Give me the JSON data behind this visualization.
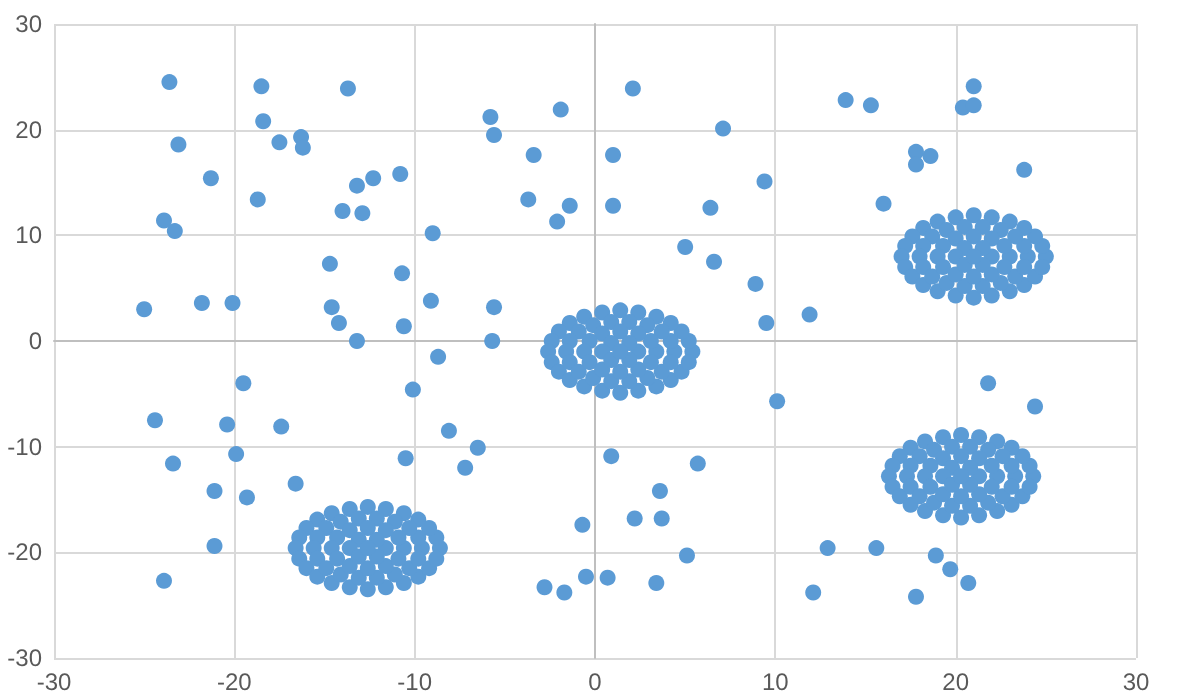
{
  "chart_data": {
    "type": "scatter",
    "marker": "circle",
    "grid": true,
    "xlim": [
      -30,
      30
    ],
    "ylim": [
      -30,
      30
    ],
    "xticks": [
      -30,
      -20,
      -10,
      0,
      10,
      20,
      30
    ],
    "yticks": [
      -30,
      -20,
      -10,
      0,
      10,
      20,
      30
    ],
    "series": [
      {
        "color": "#5b9bd5",
        "x": [
          -23.6,
          -18.5,
          -13.7,
          -18.4,
          -23.1,
          -17.5,
          -16.3,
          -16.2,
          -21.3,
          -18.7,
          -13.2,
          -12.3,
          -10.8,
          -14.0,
          -12.9,
          -23.9,
          -23.3,
          -9.0,
          -14.7,
          -10.7,
          -25.0,
          -21.8,
          -20.1,
          -14.6,
          -14.2,
          -10.6,
          -9.1,
          -5.6,
          -13.2,
          -5.7,
          -5.8,
          -5.6,
          -3.4,
          -3.7,
          -2.1,
          -1.4,
          -1.9,
          2.1,
          1.0,
          1.0,
          7.1,
          9.4,
          6.4,
          5.0,
          6.6,
          8.9,
          9.5,
          11.9,
          13.9,
          15.3,
          20.4,
          21.0,
          21.0,
          17.8,
          17.8,
          18.6,
          23.8,
          16.0,
          -19.5,
          -10.1,
          -8.7,
          -24.4,
          -20.4,
          -17.4,
          -19.9,
          -23.4,
          -8.1,
          -6.5,
          -10.5,
          -7.2,
          -16.6,
          -21.1,
          -19.3,
          -21.1,
          -23.9,
          -0.7,
          -0.5,
          -2.8,
          -1.7,
          10.1,
          21.8,
          24.4,
          0.9,
          5.7,
          3.6,
          2.2,
          3.7,
          5.1,
          0.7,
          3.4,
          12.9,
          15.6,
          18.9,
          19.7,
          20.7,
          12.1,
          17.8
        ],
        "values": [
          24.5,
          24.1,
          23.9,
          20.8,
          18.6,
          18.8,
          19.3,
          18.3,
          15.4,
          13.4,
          14.7,
          15.4,
          15.8,
          12.3,
          12.1,
          11.4,
          10.4,
          10.2,
          7.3,
          6.4,
          3.0,
          3.6,
          3.6,
          3.2,
          1.7,
          1.4,
          3.8,
          3.2,
          0,
          0,
          21.2,
          19.5,
          17.6,
          13.4,
          11.3,
          12.8,
          21.9,
          23.9,
          17.6,
          12.8,
          20.1,
          15.1,
          12.6,
          8.9,
          7.5,
          5.4,
          1.7,
          2.5,
          22.8,
          22.3,
          22.1,
          22.3,
          24.1,
          17.9,
          16.7,
          17.5,
          16.2,
          13.0,
          -4.0,
          -4.6,
          -1.5,
          -7.5,
          -7.9,
          -8.1,
          -10.7,
          -11.6,
          -8.5,
          -10.1,
          -11.1,
          -12.0,
          -13.5,
          -14.2,
          -14.8,
          -19.4,
          -22.7,
          -17.4,
          -22.3,
          -23.3,
          -23.8,
          -5.7,
          -4.0,
          -6.2,
          -10.9,
          -11.6,
          -14.2,
          -16.8,
          -16.8,
          -20.3,
          -22.4,
          -22.9,
          -19.6,
          -19.6,
          -20.3,
          -21.6,
          -22.9,
          -23.8,
          -24.2
        ]
      },
      {
        "color": "#5b9bd5",
        "x": [
          5.4,
          5.2,
          4.8,
          4.2,
          3.4,
          2.4,
          1.4,
          0.4,
          -0.6,
          -1.4,
          -2.0,
          -2.4,
          -2.6,
          -2.4,
          -2.0,
          -1.4,
          -0.6,
          0.4,
          1.4,
          2.4,
          3.4,
          4.2,
          4.8,
          5.2,
          4.4,
          4.2,
          3.7,
          2.9,
          1.9,
          0.9,
          -0.1,
          -0.9,
          -1.4,
          -1.6,
          -1.4,
          -0.9,
          -0.1,
          0.9,
          1.9,
          2.9,
          3.7,
          4.2,
          3.4,
          3.1,
          2.4,
          1.4,
          0.4,
          -0.3,
          -0.6,
          -0.3,
          0.4,
          1.4,
          2.4,
          3.1,
          2.4,
          1.9,
          0.9,
          0.4,
          0.9,
          1.9,
          1.4
        ],
        "values": [
          -1.0,
          0,
          0.9,
          1.7,
          2.3,
          2.7,
          2.9,
          2.7,
          2.3,
          1.7,
          0.9,
          0,
          -1.0,
          -2.0,
          -2.9,
          -3.7,
          -4.3,
          -4.7,
          -4.9,
          -4.7,
          -4.3,
          -3.7,
          -2.9,
          -2.0,
          -1.0,
          0,
          0.9,
          1.5,
          1.8,
          1.8,
          1.5,
          0.9,
          0,
          -1.0,
          -2.0,
          -2.9,
          -3.5,
          -3.8,
          -3.8,
          -3.5,
          -2.9,
          -2.0,
          -1.0,
          0,
          0.7,
          0.9,
          0.7,
          0,
          -1.0,
          -2.0,
          -2.7,
          -2.9,
          -2.7,
          -2.0,
          -1.0,
          -0.2,
          -0.2,
          -1.0,
          -1.8,
          -1.8,
          -1.0
        ]
      },
      {
        "color": "#5b9bd5",
        "x": [
          25.0,
          24.8,
          24.4,
          23.8,
          23.0,
          22.0,
          21.0,
          20.0,
          19.0,
          18.2,
          17.6,
          17.2,
          17.0,
          17.2,
          17.6,
          18.2,
          19.0,
          20.0,
          21.0,
          22.0,
          23.0,
          23.8,
          24.4,
          24.8,
          24.0,
          23.8,
          23.3,
          22.5,
          21.5,
          20.5,
          19.5,
          18.7,
          18.2,
          18.0,
          18.2,
          18.7,
          19.5,
          20.5,
          21.5,
          22.5,
          23.3,
          23.8,
          23.0,
          22.7,
          22.0,
          21.0,
          20.0,
          19.3,
          19.0,
          19.3,
          20.0,
          21.0,
          22.0,
          22.7,
          22.0,
          21.5,
          20.5,
          20.0,
          20.5,
          21.5,
          21.0
        ],
        "values": [
          8.0,
          9.0,
          9.9,
          10.7,
          11.3,
          11.7,
          11.9,
          11.7,
          11.3,
          10.7,
          9.9,
          9.0,
          8.0,
          7.0,
          6.1,
          5.3,
          4.7,
          4.3,
          4.1,
          4.3,
          4.7,
          5.3,
          6.1,
          7.0,
          8.0,
          9.0,
          9.9,
          10.5,
          10.8,
          10.8,
          10.5,
          9.9,
          9.0,
          8.0,
          7.0,
          6.1,
          5.5,
          5.2,
          5.2,
          5.5,
          6.1,
          7.0,
          8.0,
          9.0,
          9.7,
          9.9,
          9.7,
          9.0,
          8.0,
          7.0,
          6.3,
          6.1,
          6.3,
          7.0,
          8.0,
          8.8,
          8.8,
          8.0,
          7.2,
          7.2,
          8.0
        ]
      },
      {
        "color": "#5b9bd5",
        "x": [
          24.3,
          24.1,
          23.7,
          23.1,
          22.3,
          21.3,
          20.3,
          19.3,
          18.3,
          17.5,
          16.9,
          16.5,
          16.3,
          16.5,
          16.9,
          17.5,
          18.3,
          19.3,
          20.3,
          21.3,
          22.3,
          23.1,
          23.7,
          24.1,
          23.3,
          23.1,
          22.6,
          21.8,
          20.8,
          19.8,
          18.8,
          18.0,
          17.5,
          17.3,
          17.5,
          18.0,
          18.8,
          19.8,
          20.8,
          21.8,
          22.6,
          23.1,
          22.3,
          22.0,
          21.3,
          20.3,
          19.3,
          18.6,
          18.3,
          18.6,
          19.3,
          20.3,
          21.3,
          22.0,
          21.3,
          20.8,
          19.8,
          19.3,
          19.8,
          20.8,
          20.3
        ],
        "values": [
          -12.8,
          -11.8,
          -10.9,
          -10.1,
          -9.5,
          -9.1,
          -8.9,
          -9.1,
          -9.5,
          -10.1,
          -10.9,
          -11.8,
          -12.8,
          -13.8,
          -14.7,
          -15.5,
          -16.1,
          -16.5,
          -16.7,
          -16.5,
          -16.1,
          -15.5,
          -14.7,
          -13.8,
          -12.8,
          -11.8,
          -10.9,
          -10.3,
          -10.0,
          -10.0,
          -10.3,
          -10.9,
          -11.8,
          -12.8,
          -13.8,
          -14.7,
          -15.3,
          -15.6,
          -15.6,
          -15.3,
          -14.7,
          -13.8,
          -12.8,
          -11.8,
          -11.1,
          -10.9,
          -11.1,
          -11.8,
          -12.8,
          -13.8,
          -14.5,
          -14.7,
          -14.5,
          -13.8,
          -12.8,
          -12.0,
          -12.0,
          -12.8,
          -13.6,
          -13.6,
          -12.8
        ]
      },
      {
        "color": "#5b9bd5",
        "x": [
          -8.6,
          -8.8,
          -9.2,
          -9.8,
          -10.6,
          -11.6,
          -12.6,
          -13.6,
          -14.6,
          -15.4,
          -16.0,
          -16.4,
          -16.6,
          -16.4,
          -16.0,
          -15.4,
          -14.6,
          -13.6,
          -12.6,
          -11.6,
          -10.6,
          -9.8,
          -9.2,
          -8.8,
          -9.6,
          -9.8,
          -10.3,
          -11.1,
          -12.1,
          -13.1,
          -14.1,
          -14.9,
          -15.4,
          -15.6,
          -15.4,
          -14.9,
          -14.1,
          -13.1,
          -12.1,
          -11.1,
          -10.3,
          -9.8,
          -10.6,
          -10.9,
          -11.6,
          -12.6,
          -13.6,
          -14.3,
          -14.6,
          -14.3,
          -13.6,
          -12.6,
          -11.6,
          -10.9,
          -11.6,
          -12.1,
          -13.1,
          -13.6,
          -13.1,
          -12.1,
          -12.6
        ],
        "values": [
          -19.6,
          -18.6,
          -17.7,
          -16.9,
          -16.3,
          -15.9,
          -15.7,
          -15.9,
          -16.3,
          -16.9,
          -17.7,
          -18.6,
          -19.6,
          -20.6,
          -21.5,
          -22.3,
          -22.9,
          -23.3,
          -23.5,
          -23.3,
          -22.9,
          -22.3,
          -21.5,
          -20.6,
          -19.6,
          -18.6,
          -17.7,
          -17.1,
          -16.8,
          -16.8,
          -17.1,
          -17.7,
          -18.6,
          -19.6,
          -20.6,
          -21.5,
          -22.1,
          -22.4,
          -22.4,
          -22.1,
          -21.5,
          -20.6,
          -19.6,
          -18.6,
          -17.9,
          -17.7,
          -17.9,
          -18.6,
          -19.6,
          -20.6,
          -21.3,
          -21.5,
          -21.3,
          -20.6,
          -19.6,
          -18.8,
          -18.8,
          -19.6,
          -20.4,
          -20.4,
          -19.6
        ]
      }
    ]
  }
}
